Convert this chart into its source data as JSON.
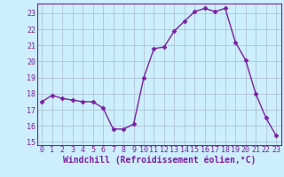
{
  "x": [
    0,
    1,
    2,
    3,
    4,
    5,
    6,
    7,
    8,
    9,
    10,
    11,
    12,
    13,
    14,
    15,
    16,
    17,
    18,
    19,
    20,
    21,
    22,
    23
  ],
  "y": [
    17.5,
    17.9,
    17.7,
    17.6,
    17.5,
    17.5,
    17.1,
    15.8,
    15.8,
    16.1,
    19.0,
    20.8,
    20.9,
    21.9,
    22.5,
    23.1,
    23.3,
    23.1,
    23.3,
    21.2,
    20.1,
    18.0,
    16.5,
    15.4
  ],
  "line_color": "#7b1fa2",
  "marker": "D",
  "markersize": 2.5,
  "linewidth": 1.0,
  "bg_color": "#cceeff",
  "grid_color": "#aabbcc",
  "xlabel": "Windchill (Refroidissement éolien,°C)",
  "xlabel_color": "#7b1fa2",
  "xlim_min": -0.5,
  "xlim_max": 23.5,
  "ylim_min": 14.8,
  "ylim_max": 23.6,
  "yticks": [
    15,
    16,
    17,
    18,
    19,
    20,
    21,
    22,
    23
  ],
  "xticks": [
    0,
    1,
    2,
    3,
    4,
    5,
    6,
    7,
    8,
    9,
    10,
    11,
    12,
    13,
    14,
    15,
    16,
    17,
    18,
    19,
    20,
    21,
    22,
    23
  ],
  "tick_color": "#7b1fa2",
  "tick_fontsize": 6.0,
  "xlabel_fontsize": 7.0,
  "spine_color": "#7b1fa2"
}
